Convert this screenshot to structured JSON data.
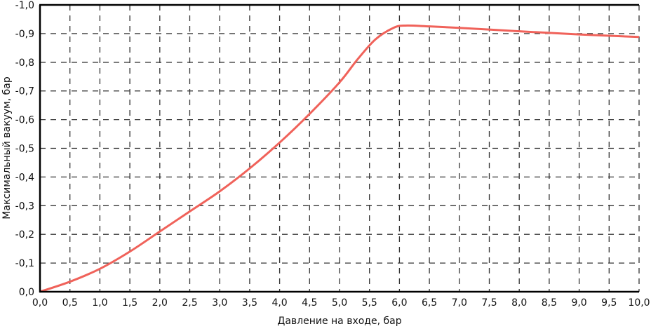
{
  "chart_data": {
    "type": "line",
    "title": "",
    "xlabel": "Давление на входе, бар",
    "ylabel": "Максимальный вакуум, бар",
    "xlim": [
      0,
      10
    ],
    "ylim": [
      0,
      -1
    ],
    "grid": true,
    "x_ticks": [
      "0,0",
      "0,5",
      "1,0",
      "1,5",
      "2,0",
      "2,5",
      "3,0",
      "3,5",
      "4,0",
      "4,5",
      "5,0",
      "5,5",
      "6,0",
      "6,5",
      "7,0",
      "7,5",
      "8,0",
      "8,5",
      "9,0",
      "9,5",
      "10,0"
    ],
    "y_ticks": [
      "0,0",
      "-0,1",
      "-0,2",
      "-0,3",
      "-0,4",
      "-0,5",
      "-0,6",
      "-0,7",
      "-0,8",
      "-0,9",
      "-1,0"
    ],
    "series": [
      {
        "color": "#f0625a",
        "x": [
          0,
          0.5,
          1.0,
          1.5,
          2.0,
          2.5,
          3.0,
          3.5,
          4.0,
          4.5,
          5.0,
          5.3,
          5.6,
          5.9,
          6.1,
          6.5,
          7.0,
          8.0,
          9.0,
          10.0
        ],
        "y": [
          0,
          -0.035,
          -0.08,
          -0.14,
          -0.21,
          -0.28,
          -0.35,
          -0.43,
          -0.52,
          -0.62,
          -0.73,
          -0.81,
          -0.88,
          -0.92,
          -0.928,
          -0.925,
          -0.92,
          -0.908,
          -0.897,
          -0.888
        ]
      }
    ]
  }
}
